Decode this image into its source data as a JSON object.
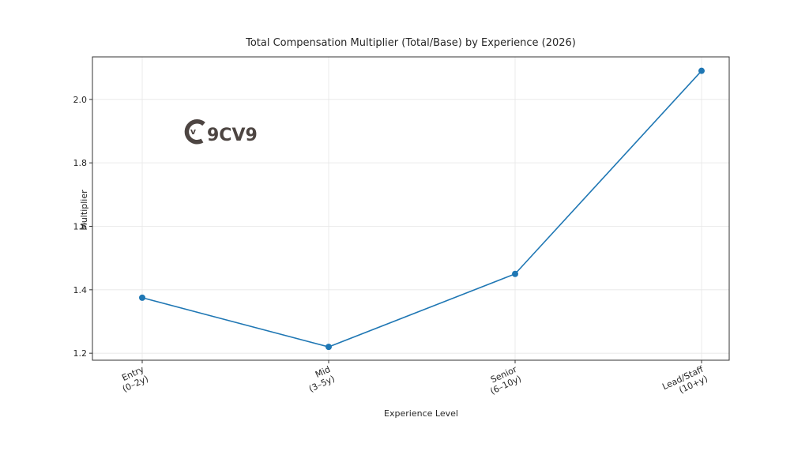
{
  "chart_data": {
    "type": "line",
    "title": "Total Compensation Multiplier (Total/Base) by Experience (2026)",
    "xlabel": "Experience Level",
    "ylabel": "Multiplier",
    "categories": [
      "Entry\n(0–2y)",
      "Mid\n(3–5y)",
      "Senior\n(6–10y)",
      "Lead/Staff\n(10+y)"
    ],
    "category_lines": [
      [
        "Entry",
        "(0–2y)"
      ],
      [
        "Mid",
        "(3–5y)"
      ],
      [
        "Senior",
        "(6–10y)"
      ],
      [
        "Lead/Staff",
        "(10+y)"
      ]
    ],
    "series": [
      {
        "name": "Multiplier",
        "values": [
          1.375,
          1.22,
          1.45,
          2.09
        ],
        "color": "#1f77b4",
        "marker": "circle"
      }
    ],
    "ylim": [
      1.178,
      2.134
    ],
    "yticks": [
      1.2,
      1.4,
      1.6,
      1.8,
      2.0
    ],
    "ytick_labels": [
      "1.2",
      "1.4",
      "1.6",
      "1.8",
      "2.0"
    ],
    "grid": true,
    "legend": null
  },
  "watermark": {
    "text": "9CV9",
    "badge": "v"
  }
}
